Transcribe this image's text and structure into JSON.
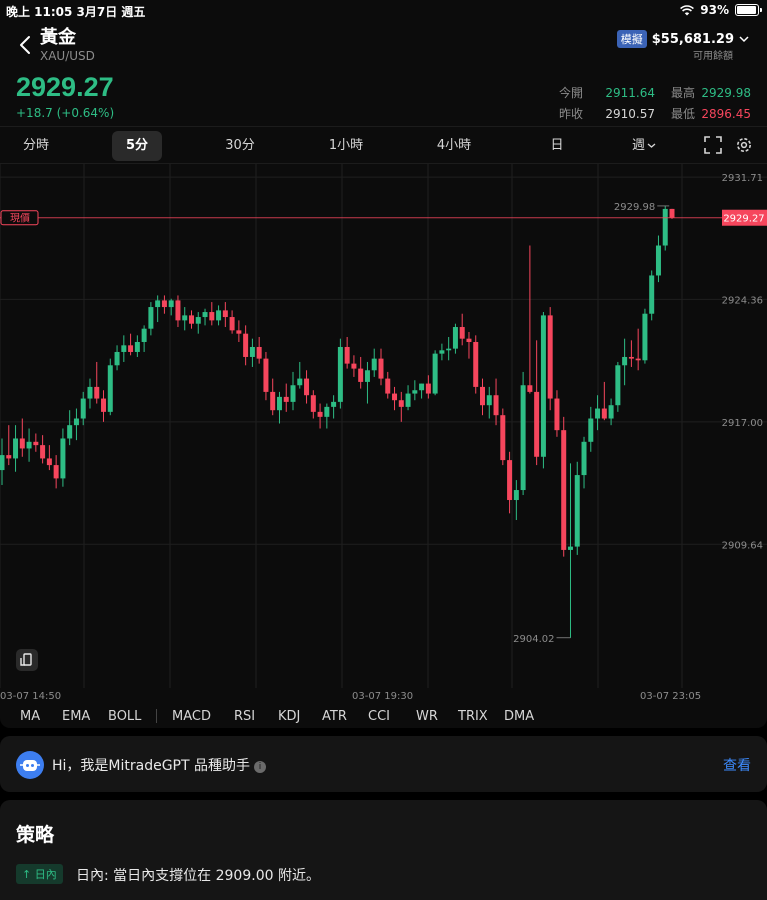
{
  "status_bar": {
    "time": "晚上 11:05   3月7日 週五",
    "battery": "93%",
    "battery_level": 0.93
  },
  "header": {
    "title": "黃金",
    "symbol": "XAU/USD",
    "account_badge": "模擬",
    "balance": "$55,681.29",
    "balance_label": "可用餘額",
    "price": "2929.27",
    "change": "+18.7 (+0.64%)",
    "open_label": "今開",
    "open": "2911.64",
    "high_label": "最高",
    "high": "2929.98",
    "prev_close_label": "昨收",
    "prev_close": "2910.57",
    "low_label": "最低",
    "low": "2896.45"
  },
  "timeframes": {
    "items": [
      "分時",
      "5分",
      "30分",
      "1小時",
      "4小時",
      "日",
      "週"
    ],
    "active": "5分"
  },
  "icons": {
    "back": "chevron-left-icon",
    "fullscreen": "fullscreen-icon",
    "settings": "gear-icon",
    "rotate": "rotate-screen-icon",
    "wifi": "wifi-icon"
  },
  "colors": {
    "up": "#2ebd85",
    "down": "#f6465d",
    "accent": "#3d8bfd",
    "badge": "#3b63b6"
  },
  "chart_data": {
    "type": "candlestick",
    "title": "",
    "current_price_label": "現價",
    "current_price": 2929.27,
    "y_ticks": [
      2931.71,
      2924.36,
      2917.0,
      2909.64
    ],
    "ylim": [
      2901.0,
      2932.5
    ],
    "x_ticks": [
      "03-07 14:50",
      "03-07 19:30",
      "03-07 23:05"
    ],
    "max_annotation": 2929.98,
    "min_annotation": 2904.02,
    "candles": [
      [
        2914.1,
        2916.0,
        2913.2,
        2915.0
      ],
      [
        2915.0,
        2916.8,
        2914.4,
        2914.8
      ],
      [
        2914.8,
        2916.8,
        2914.0,
        2916.0
      ],
      [
        2916.0,
        2917.2,
        2914.9,
        2915.4
      ],
      [
        2915.4,
        2916.6,
        2914.6,
        2915.8
      ],
      [
        2915.8,
        2916.3,
        2915.2,
        2915.6
      ],
      [
        2915.6,
        2916.2,
        2914.5,
        2914.8
      ],
      [
        2914.8,
        2915.6,
        2914.1,
        2914.4
      ],
      [
        2914.4,
        2915.0,
        2913.0,
        2913.6
      ],
      [
        2913.6,
        2916.6,
        2913.1,
        2916.0
      ],
      [
        2916.0,
        2917.7,
        2915.6,
        2916.8
      ],
      [
        2916.8,
        2917.8,
        2915.9,
        2917.2
      ],
      [
        2917.2,
        2918.8,
        2916.8,
        2918.4
      ],
      [
        2918.4,
        2919.6,
        2917.8,
        2919.1
      ],
      [
        2919.1,
        2920.6,
        2918.1,
        2918.4
      ],
      [
        2918.4,
        2918.9,
        2917.0,
        2917.6
      ],
      [
        2917.6,
        2920.8,
        2917.4,
        2920.4
      ],
      [
        2920.4,
        2921.6,
        2920.1,
        2921.2
      ],
      [
        2921.2,
        2922.2,
        2920.6,
        2921.6
      ],
      [
        2921.6,
        2922.3,
        2921.0,
        2921.2
      ],
      [
        2921.2,
        2922.2,
        2920.9,
        2921.8
      ],
      [
        2921.8,
        2922.8,
        2921.2,
        2922.6
      ],
      [
        2922.6,
        2924.2,
        2922.2,
        2923.9
      ],
      [
        2923.9,
        2924.6,
        2923.0,
        2924.3
      ],
      [
        2924.3,
        2924.6,
        2923.5,
        2923.9
      ],
      [
        2923.9,
        2924.4,
        2923.4,
        2924.3
      ],
      [
        2924.3,
        2924.6,
        2922.7,
        2923.1
      ],
      [
        2923.1,
        2923.9,
        2922.5,
        2923.4
      ],
      [
        2923.4,
        2923.7,
        2922.6,
        2922.9
      ],
      [
        2922.9,
        2923.6,
        2922.3,
        2923.3
      ],
      [
        2923.3,
        2923.8,
        2922.8,
        2923.6
      ],
      [
        2923.6,
        2924.2,
        2922.8,
        2923.1
      ],
      [
        2923.1,
        2924.0,
        2922.8,
        2923.7
      ],
      [
        2923.7,
        2924.2,
        2922.7,
        2923.3
      ],
      [
        2923.3,
        2923.7,
        2922.3,
        2922.5
      ],
      [
        2922.5,
        2923.1,
        2921.8,
        2922.3
      ],
      [
        2922.3,
        2922.8,
        2920.4,
        2920.9
      ],
      [
        2920.9,
        2922.0,
        2920.3,
        2921.5
      ],
      [
        2921.5,
        2922.1,
        2920.5,
        2920.8
      ],
      [
        2920.8,
        2921.2,
        2918.3,
        2918.8
      ],
      [
        2918.8,
        2919.6,
        2917.4,
        2917.7
      ],
      [
        2917.7,
        2918.8,
        2916.9,
        2918.5
      ],
      [
        2918.5,
        2919.3,
        2917.6,
        2918.2
      ],
      [
        2918.2,
        2920.0,
        2917.7,
        2919.2
      ],
      [
        2919.2,
        2920.6,
        2919.0,
        2919.6
      ],
      [
        2919.6,
        2920.1,
        2918.1,
        2918.6
      ],
      [
        2918.6,
        2918.9,
        2917.2,
        2917.6
      ],
      [
        2917.6,
        2918.1,
        2916.6,
        2917.3
      ],
      [
        2917.3,
        2918.1,
        2916.6,
        2917.9
      ],
      [
        2917.9,
        2918.6,
        2917.2,
        2918.2
      ],
      [
        2918.2,
        2922.0,
        2917.8,
        2921.5
      ],
      [
        2921.5,
        2922.1,
        2920.2,
        2920.5
      ],
      [
        2920.5,
        2921.0,
        2919.7,
        2920.2
      ],
      [
        2920.2,
        2920.9,
        2919.0,
        2919.4
      ],
      [
        2919.4,
        2920.6,
        2918.1,
        2920.1
      ],
      [
        2920.1,
        2921.4,
        2919.7,
        2920.8
      ],
      [
        2920.8,
        2921.4,
        2919.2,
        2919.6
      ],
      [
        2919.6,
        2920.0,
        2918.4,
        2918.7
      ],
      [
        2918.7,
        2919.1,
        2917.7,
        2918.3
      ],
      [
        2918.3,
        2918.8,
        2917.0,
        2917.9
      ],
      [
        2917.9,
        2919.2,
        2917.7,
        2918.7
      ],
      [
        2918.7,
        2919.5,
        2918.3,
        2918.9
      ],
      [
        2918.9,
        2919.3,
        2918.4,
        2919.3
      ],
      [
        2919.3,
        2919.8,
        2918.4,
        2918.7
      ],
      [
        2918.7,
        2921.3,
        2918.6,
        2921.1
      ],
      [
        2921.1,
        2921.7,
        2920.7,
        2921.3
      ],
      [
        2921.3,
        2922.1,
        2920.7,
        2921.4
      ],
      [
        2921.4,
        2922.9,
        2921.1,
        2922.7
      ],
      [
        2922.7,
        2923.5,
        2921.6,
        2922.0
      ],
      [
        2922.0,
        2922.4,
        2920.8,
        2921.8
      ],
      [
        2921.8,
        2922.2,
        2918.7,
        2919.1
      ],
      [
        2919.1,
        2919.6,
        2917.4,
        2918.0
      ],
      [
        2918.0,
        2919.1,
        2917.2,
        2918.6
      ],
      [
        2918.6,
        2919.6,
        2916.8,
        2917.4
      ],
      [
        2917.4,
        2917.8,
        2914.4,
        2914.7
      ],
      [
        2914.7,
        2915.2,
        2911.5,
        2912.3
      ],
      [
        2912.3,
        2913.5,
        2911.1,
        2912.9
      ],
      [
        2912.9,
        2920.0,
        2912.6,
        2919.2
      ],
      [
        2919.2,
        2927.6,
        2918.7,
        2918.8
      ],
      [
        2918.8,
        2921.9,
        2914.4,
        2914.9
      ],
      [
        2914.9,
        2923.6,
        2914.2,
        2923.4
      ],
      [
        2923.4,
        2923.9,
        2917.7,
        2918.4
      ],
      [
        2918.4,
        2918.9,
        2916.1,
        2916.5
      ],
      [
        2916.5,
        2917.3,
        2908.9,
        2909.3
      ],
      [
        2909.3,
        2914.5,
        2904.02,
        2909.5
      ],
      [
        2909.5,
        2914.6,
        2909.0,
        2913.8
      ],
      [
        2913.8,
        2916.1,
        2913.0,
        2915.8
      ],
      [
        2915.8,
        2917.9,
        2915.2,
        2917.2
      ],
      [
        2917.2,
        2918.6,
        2916.5,
        2917.8
      ],
      [
        2917.8,
        2919.4,
        2917.1,
        2917.2
      ],
      [
        2917.2,
        2918.4,
        2916.8,
        2918.0
      ],
      [
        2918.0,
        2920.6,
        2917.6,
        2920.4
      ],
      [
        2920.4,
        2922.0,
        2919.2,
        2920.9
      ],
      [
        2920.9,
        2921.9,
        2920.3,
        2920.8
      ],
      [
        2920.8,
        2922.6,
        2920.1,
        2920.7
      ],
      [
        2920.7,
        2923.8,
        2920.5,
        2923.5
      ],
      [
        2923.5,
        2926.1,
        2923.1,
        2925.8
      ],
      [
        2925.8,
        2928.2,
        2925.4,
        2927.6
      ],
      [
        2927.6,
        2929.98,
        2927.3,
        2929.8
      ],
      [
        2929.8,
        2929.8,
        2929.2,
        2929.27
      ]
    ]
  },
  "indicators": [
    "MA",
    "EMA",
    "BOLL",
    "MACD",
    "RSI",
    "KDJ",
    "ATR",
    "CCI",
    "WR",
    "TRIX",
    "DMA"
  ],
  "gpt": {
    "text": "Hi，我是MitradeGPT 品種助手",
    "link": "查看"
  },
  "strategy": {
    "title": "策略",
    "badge": "↑ 日內",
    "text": "日內: 當日內支撐位在 2909.00 附近。"
  }
}
